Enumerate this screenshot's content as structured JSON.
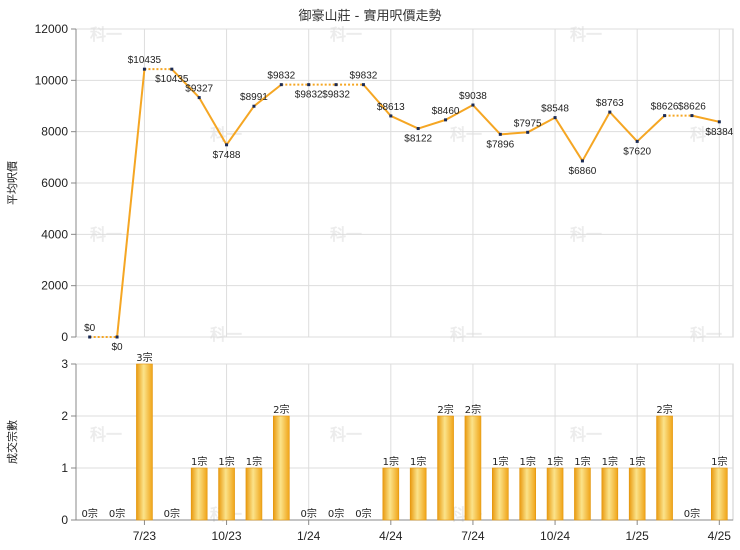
{
  "chart_data": [
    {
      "type": "line",
      "title": "御豪山莊 - 實用呎價走勢",
      "ylabel": "平均呎價",
      "ylim": [
        0,
        12000
      ],
      "yticks": [
        0,
        2000,
        4000,
        6000,
        8000,
        10000,
        12000
      ],
      "grid": true,
      "color": "#f5a623",
      "points": [
        {
          "value": 0,
          "label": "$0"
        },
        {
          "value": 0,
          "label": "$0"
        },
        {
          "value": 10435,
          "label": "$10435"
        },
        {
          "value": 10435,
          "label": "$10435"
        },
        {
          "value": 9327,
          "label": "$9327"
        },
        {
          "value": 7488,
          "label": "$7488"
        },
        {
          "value": 8991,
          "label": "$8991"
        },
        {
          "value": 9832,
          "label": "$9832"
        },
        {
          "value": 9832,
          "label": "$9832"
        },
        {
          "value": 9832,
          "label": "$9832"
        },
        {
          "value": 9832,
          "label": "$9832"
        },
        {
          "value": 8613,
          "label": "$8613"
        },
        {
          "value": 8122,
          "label": "$8122"
        },
        {
          "value": 8460,
          "label": "$8460"
        },
        {
          "value": 9038,
          "label": "$9038"
        },
        {
          "value": 7896,
          "label": "$7896"
        },
        {
          "value": 7975,
          "label": "$7975"
        },
        {
          "value": 8548,
          "label": "$8548"
        },
        {
          "value": 6860,
          "label": "$6860"
        },
        {
          "value": 8763,
          "label": "$8763"
        },
        {
          "value": 7620,
          "label": "$7620"
        },
        {
          "value": 8626,
          "label": "$8626"
        },
        {
          "value": 8626,
          "label": "$8626"
        },
        {
          "value": 8384,
          "label": "$8384"
        }
      ]
    },
    {
      "type": "bar",
      "ylabel": "成交宗數",
      "ylim": [
        0,
        3
      ],
      "yticks": [
        0,
        1,
        2,
        3
      ],
      "grid": true,
      "color": "#f5a623",
      "values": [
        0,
        0,
        3,
        0,
        1,
        1,
        1,
        2,
        0,
        0,
        0,
        1,
        1,
        2,
        2,
        1,
        1,
        1,
        1,
        1,
        1,
        2,
        0,
        1
      ],
      "labels": [
        "0宗",
        "0宗",
        "3宗",
        "0宗",
        "1宗",
        "1宗",
        "1宗",
        "2宗",
        "0宗",
        "0宗",
        "0宗",
        "1宗",
        "1宗",
        "2宗",
        "2宗",
        "1宗",
        "1宗",
        "1宗",
        "1宗",
        "1宗",
        "1宗",
        "2宗",
        "0宗",
        "1宗"
      ],
      "xticks": [
        {
          "index": 2,
          "label": "7/23"
        },
        {
          "index": 5,
          "label": "10/23"
        },
        {
          "index": 8,
          "label": "1/24"
        },
        {
          "index": 11,
          "label": "4/24"
        },
        {
          "index": 14,
          "label": "7/24"
        },
        {
          "index": 17,
          "label": "10/24"
        },
        {
          "index": 20,
          "label": "1/25"
        },
        {
          "index": 23,
          "label": "4/25"
        }
      ]
    }
  ],
  "watermark": "科一"
}
